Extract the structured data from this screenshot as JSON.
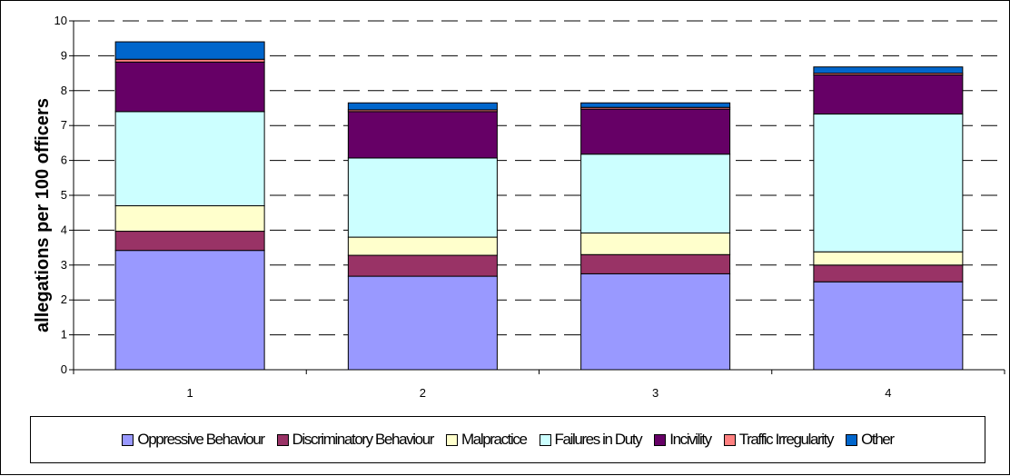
{
  "chart_data": {
    "type": "bar",
    "stacked": true,
    "categories": [
      "1",
      "2",
      "3",
      "4"
    ],
    "ylabel": "allegations per 100 officers",
    "xlabel": "",
    "ylim": [
      0,
      10
    ],
    "yticks": [
      "0",
      "1",
      "2",
      "3",
      "4",
      "5",
      "6",
      "7",
      "8",
      "9",
      "10"
    ],
    "grid": true,
    "legend_position": "bottom",
    "series": [
      {
        "name": "Oppressive Behaviour",
        "color": "#9999ff",
        "values": [
          3.42,
          2.68,
          2.75,
          2.52
        ]
      },
      {
        "name": "Discriminatory Behaviour",
        "color": "#993366",
        "values": [
          0.55,
          0.6,
          0.55,
          0.48
        ]
      },
      {
        "name": "Malpractice",
        "color": "#ffffcc",
        "values": [
          0.73,
          0.52,
          0.62,
          0.38
        ]
      },
      {
        "name": "Failures in Duty",
        "color": "#ccffff",
        "values": [
          2.7,
          2.27,
          2.26,
          3.95
        ]
      },
      {
        "name": "Incivility",
        "color": "#660066",
        "values": [
          1.42,
          1.33,
          1.29,
          1.12
        ]
      },
      {
        "name": "Traffic Irregularity",
        "color": "#ff8080",
        "values": [
          0.08,
          0.05,
          0.05,
          0.05
        ]
      },
      {
        "name": "Other",
        "color": "#0066cc",
        "values": [
          0.5,
          0.2,
          0.13,
          0.18
        ]
      }
    ]
  }
}
